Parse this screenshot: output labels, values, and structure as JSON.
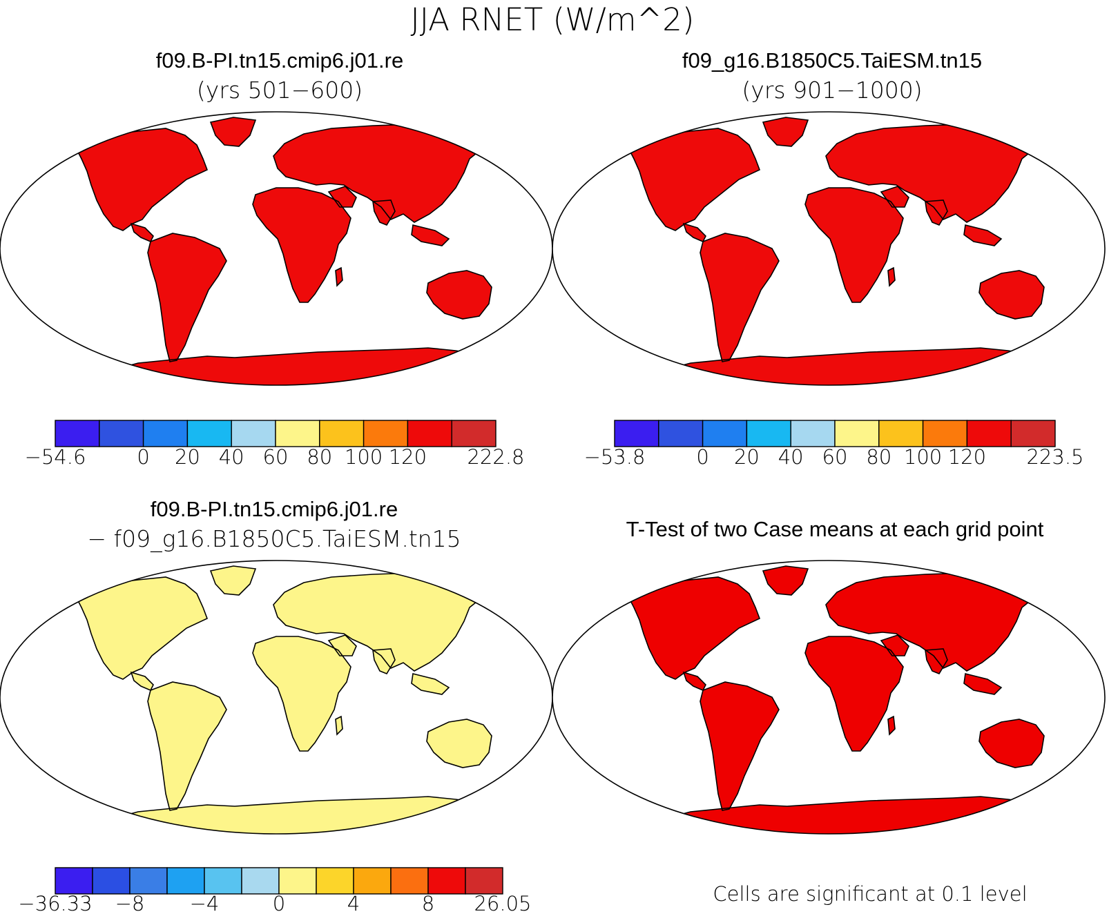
{
  "figure_title": "JJA RNET (W/m^2)",
  "panels": [
    {
      "id": "case1",
      "title": "f09.B-PI.tn15.cmip6.j01.re",
      "subtitle": "(yrs 501−600)",
      "colorbar": {
        "colors": [
          "#3b1ef0",
          "#2f52e0",
          "#1f7ff0",
          "#18b8f2",
          "#a6d8f0",
          "#fdf58a",
          "#fcc21c",
          "#fb7a0c",
          "#ee0a0a",
          "#d22b2b"
        ],
        "labels": [
          "−54.6",
          "0",
          "20",
          "40",
          "60",
          "80",
          "100",
          "120",
          "222.8"
        ],
        "label_edges": [
          0,
          2,
          3,
          4,
          5,
          6,
          7,
          8,
          10
        ]
      }
    },
    {
      "id": "case2",
      "title": "f09_g16.B1850C5.TaiESM.tn15",
      "subtitle": "(yrs 901−1000)",
      "colorbar": {
        "colors": [
          "#3b1ef0",
          "#2f52e0",
          "#1f7ff0",
          "#18b8f2",
          "#a6d8f0",
          "#fdf58a",
          "#fcc21c",
          "#fb7a0c",
          "#ee0a0a",
          "#d22b2b"
        ],
        "labels": [
          "−53.8",
          "0",
          "20",
          "40",
          "60",
          "80",
          "100",
          "120",
          "223.5"
        ],
        "label_edges": [
          0,
          2,
          3,
          4,
          5,
          6,
          7,
          8,
          10
        ]
      }
    },
    {
      "id": "difference",
      "title": "f09.B-PI.tn15.cmip6.j01.re",
      "subtitle": "− f09_g16.B1850C5.TaiESM.tn15",
      "colorbar": {
        "colors": [
          "#3b1ef0",
          "#2b4fe3",
          "#3a7ee6",
          "#1ea1f2",
          "#58c3f0",
          "#a9d9ef",
          "#fdf58a",
          "#fcd52a",
          "#fba80e",
          "#fb6f10",
          "#ee0a0a",
          "#d22b2b"
        ],
        "labels": [
          "−36.33",
          "−8",
          "−4",
          "0",
          "4",
          "8",
          "26.05"
        ],
        "label_edges": [
          0,
          2,
          4,
          6,
          8,
          10,
          12
        ]
      }
    },
    {
      "id": "ttest",
      "title": "T-Test of two Case means at each grid point",
      "footnote": "Cells are significant at 0.1 level",
      "significant_color": "#ee0000"
    }
  ]
}
